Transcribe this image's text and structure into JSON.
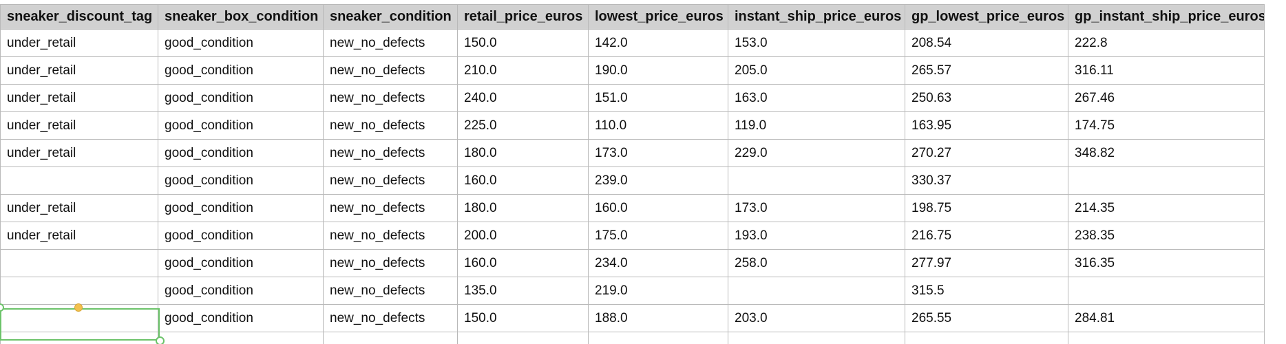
{
  "table": {
    "headers": [
      "sneaker_discount_tag",
      "sneaker_box_condition",
      "sneaker_condition",
      "retail_price_euros",
      "lowest_price_euros",
      "instant_ship_price_euros",
      "gp_lowest_price_euros",
      "gp_instant_ship_price_euros"
    ],
    "rows": [
      [
        "under_retail",
        "good_condition",
        "new_no_defects",
        "150.0",
        "142.0",
        "153.0",
        "208.54",
        "222.8"
      ],
      [
        "under_retail",
        "good_condition",
        "new_no_defects",
        "210.0",
        "190.0",
        "205.0",
        "265.57",
        "316.11"
      ],
      [
        "under_retail",
        "good_condition",
        "new_no_defects",
        "240.0",
        "151.0",
        "163.0",
        "250.63",
        "267.46"
      ],
      [
        "under_retail",
        "good_condition",
        "new_no_defects",
        "225.0",
        "110.0",
        "119.0",
        "163.95",
        "174.75"
      ],
      [
        "under_retail",
        "good_condition",
        "new_no_defects",
        "180.0",
        "173.0",
        "229.0",
        "270.27",
        "348.82"
      ],
      [
        "",
        "good_condition",
        "new_no_defects",
        "160.0",
        "239.0",
        "",
        "330.37",
        ""
      ],
      [
        "under_retail",
        "good_condition",
        "new_no_defects",
        "180.0",
        "160.0",
        "173.0",
        "198.75",
        "214.35"
      ],
      [
        "under_retail",
        "good_condition",
        "new_no_defects",
        "200.0",
        "175.0",
        "193.0",
        "216.75",
        "238.35"
      ],
      [
        "",
        "good_condition",
        "new_no_defects",
        "160.0",
        "234.0",
        "258.0",
        "277.97",
        "316.35"
      ],
      [
        "",
        "good_condition",
        "new_no_defects",
        "135.0",
        "219.0",
        "",
        "315.5",
        ""
      ],
      [
        "",
        "good_condition",
        "new_no_defects",
        "150.0",
        "188.0",
        "203.0",
        "265.55",
        "284.81"
      ],
      [
        "",
        "",
        "",
        "",
        "",
        "",
        "",
        ""
      ]
    ]
  },
  "selection": {
    "row": 10,
    "column": 0,
    "border_color": "#6cc36a",
    "handle_color": "#f2c14e"
  },
  "colors": {
    "header_bg": "#d1d1d1",
    "grid_line": "#b9b9b9"
  }
}
